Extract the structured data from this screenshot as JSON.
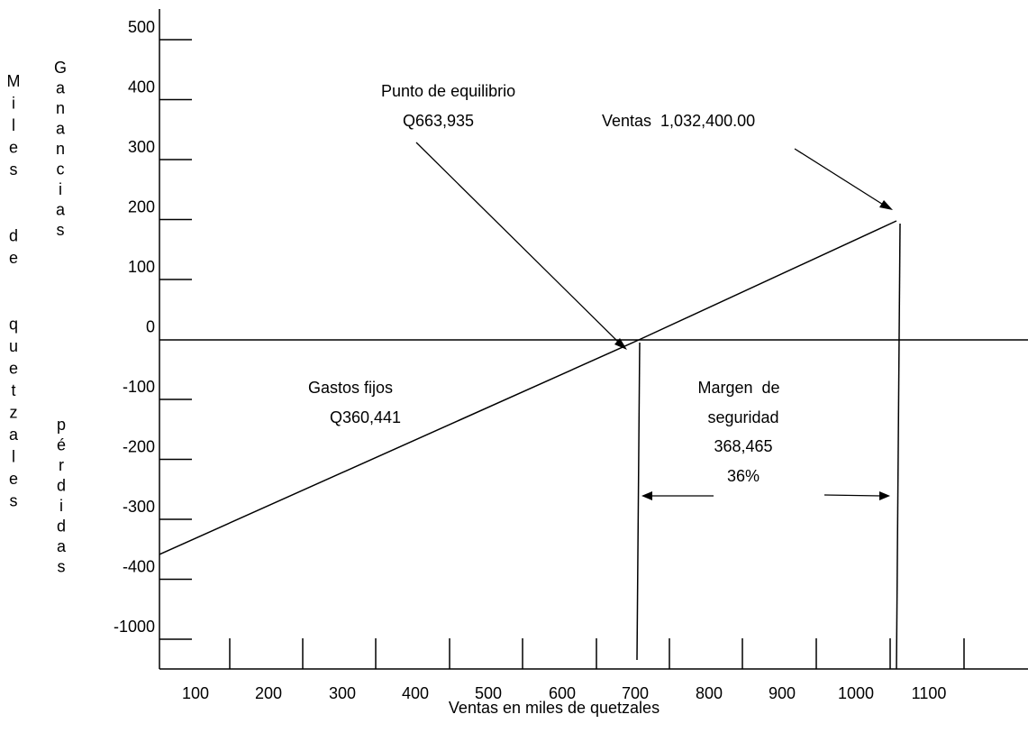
{
  "chart_data": {
    "type": "line",
    "title": "",
    "xlabel": "Ventas en miles de quetzales",
    "ylabel_outer": "Miles de quetzales",
    "ylabel_upper": "Ganancias",
    "ylabel_lower": "pérdidas",
    "y_tick_labels": [
      "500",
      "400",
      "300",
      "200",
      "100",
      "0",
      "-100",
      "-200",
      "-300",
      "-400",
      "-1000"
    ],
    "x_tick_labels": [
      "100",
      "200",
      "300",
      "400",
      "500",
      "600",
      "700",
      "800",
      "900",
      "1000",
      "1100"
    ],
    "series": [
      {
        "x": [
          0,
          663.935,
          1032.4
        ],
        "y": [
          -360.441,
          0,
          200
        ]
      }
    ],
    "annotations": {
      "break_even_title": "Punto de equilibrio",
      "break_even_value": "Q663,935",
      "sales_label": "Ventas  1,032,400.00",
      "fixed_costs_title": "Gastos fijos",
      "fixed_costs_value": "Q360,441",
      "margin_line1": "Margen  de",
      "margin_line2": "seguridad",
      "margin_line3": "368,465",
      "margin_line4": "36%"
    },
    "grid": false,
    "legend": "none"
  }
}
